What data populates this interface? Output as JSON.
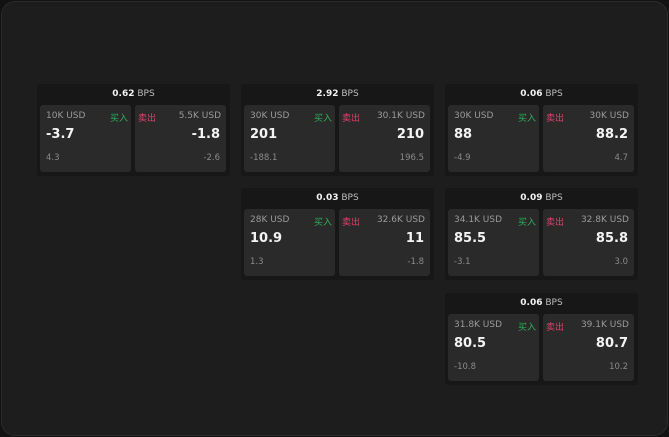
{
  "unit": "BPS",
  "buy_label": "买入",
  "sell_label": "卖出",
  "colors": {
    "buy": "#2fae5b",
    "sell": "#e0406a",
    "background": "#1d1d1d",
    "panel": "#2a2a2a"
  },
  "cards": [
    {
      "spread": "0.62",
      "buy": {
        "qty": "10K USD",
        "price": "-3.7",
        "change": "4.3"
      },
      "sell": {
        "qty": "5.5K USD",
        "price": "-1.8",
        "change": "-2.6"
      }
    },
    {
      "spread": "2.92",
      "buy": {
        "qty": "30K USD",
        "price": "201",
        "change": "-188.1"
      },
      "sell": {
        "qty": "30.1K USD",
        "price": "210",
        "change": "196.5"
      }
    },
    {
      "spread": "0.06",
      "buy": {
        "qty": "30K USD",
        "price": "88",
        "change": "-4.9"
      },
      "sell": {
        "qty": "30K USD",
        "price": "88.2",
        "change": "4.7"
      }
    },
    {
      "spread": "0.03",
      "buy": {
        "qty": "28K USD",
        "price": "10.9",
        "change": "1.3"
      },
      "sell": {
        "qty": "32.6K USD",
        "price": "11",
        "change": "-1.8"
      }
    },
    {
      "spread": "0.09",
      "buy": {
        "qty": "34.1K USD",
        "price": "85.5",
        "change": "-3.1"
      },
      "sell": {
        "qty": "32.8K USD",
        "price": "85.8",
        "change": "3.0"
      }
    },
    {
      "spread": "0.06",
      "buy": {
        "qty": "31.8K USD",
        "price": "80.5",
        "change": "-10.8"
      },
      "sell": {
        "qty": "39.1K USD",
        "price": "80.7",
        "change": "10.2"
      }
    }
  ]
}
